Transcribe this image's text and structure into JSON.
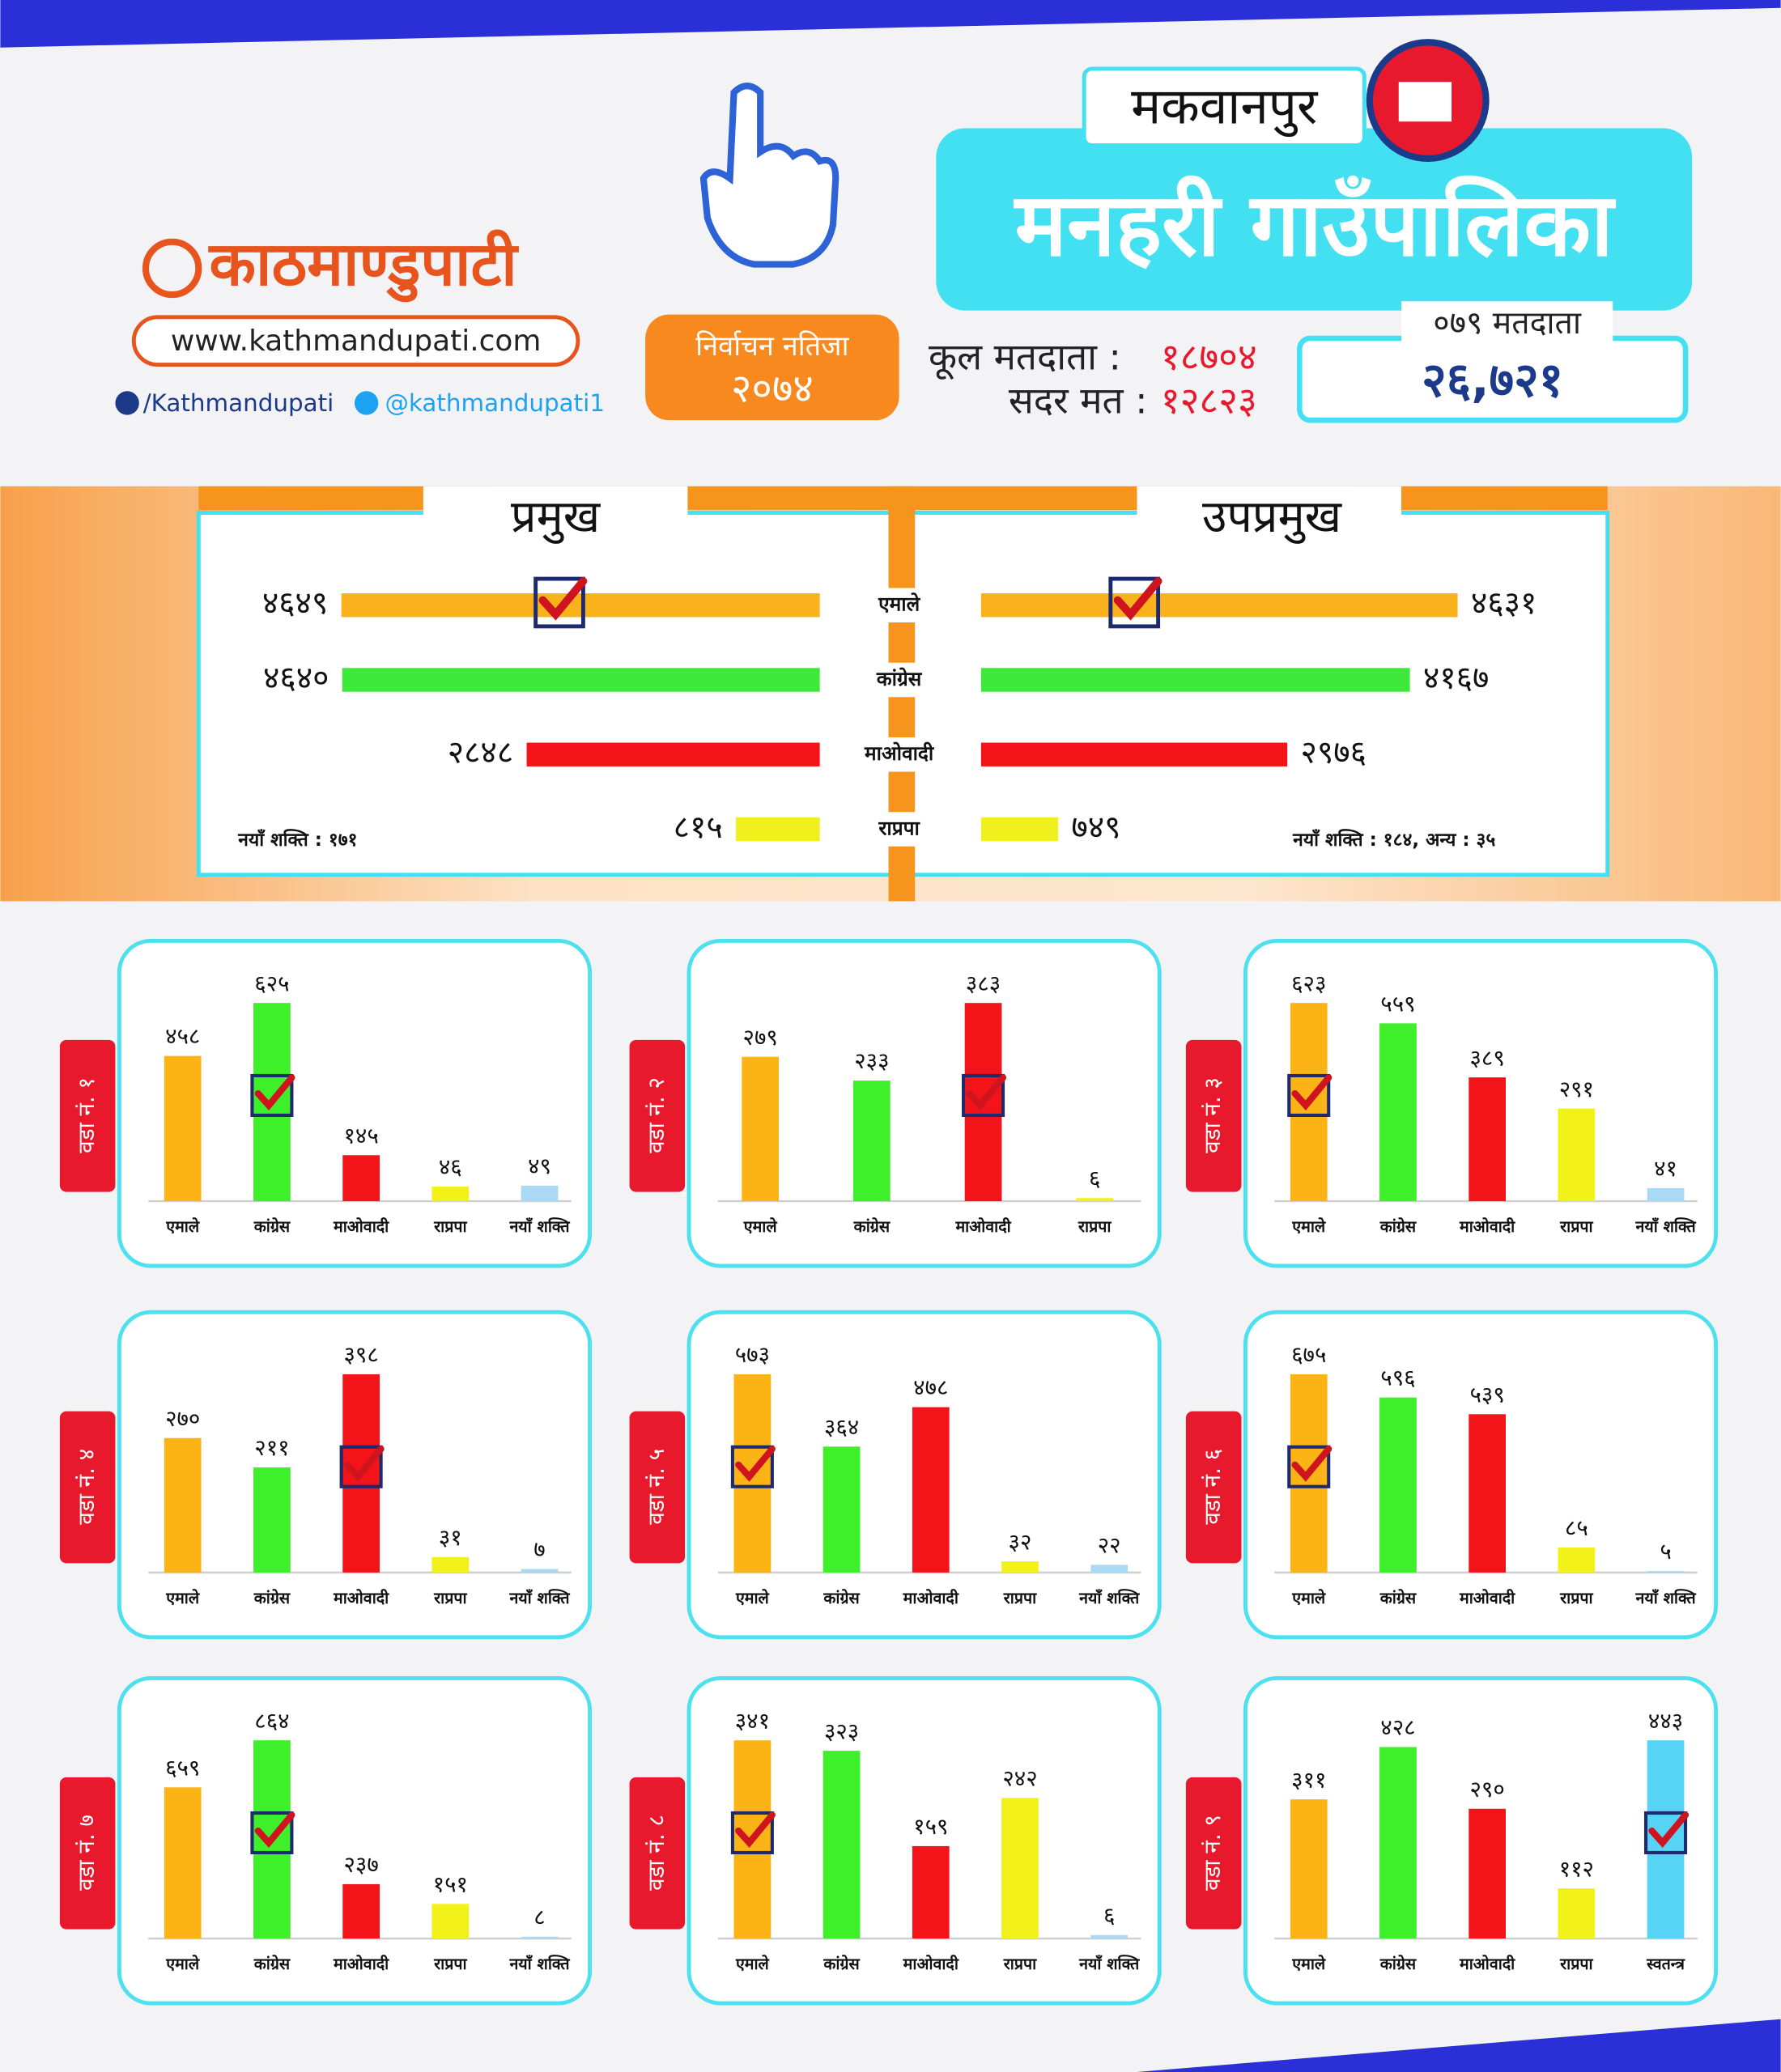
{
  "header": {
    "logo": "काठमाण्डुपाटी",
    "website": "www.kathmandupati.com",
    "facebook": "/Kathmandupati",
    "twitter": "@kathmandupati1",
    "badge_title": "निर्वाचन नतिजा",
    "badge_year": "२०७४",
    "district": "मकवानपुर",
    "municipality": "मनहरी गाउँपालिका",
    "total_voters_label": "कूल मतदाता :",
    "total_voters": "१८७०४",
    "valid_votes_label": "सदर मत :",
    "valid_votes": "१२८२३",
    "voters_079_label": "०७९ मतदाता",
    "voters_079": "२६,७२१"
  },
  "chart_data": [
    {
      "type": "mirror-bar",
      "categories": [
        "एमाले",
        "कांग्रेस",
        "माओवादी",
        "राप्रपा"
      ],
      "colors": [
        "#f9b21b",
        "#3ee83a",
        "#f3141a",
        "#f0f01e"
      ],
      "series": [
        {
          "name": "प्रमुख",
          "values": [
            4649,
            4640,
            2848,
            815
          ],
          "value_labels": [
            "४६४९",
            "४६४०",
            "२८४८",
            "८१५"
          ],
          "note": "नयाँ शक्ति : १७१",
          "checked": 0
        },
        {
          "name": "उपप्रमुख",
          "values": [
            4631,
            4167,
            2976,
            749
          ],
          "value_labels": [
            "४६३१",
            "४१६७",
            "२९७६",
            "७४९"
          ],
          "note": "नयाँ शक्ति : १८४, अन्य : ३५",
          "checked": 0
        }
      ]
    },
    {
      "type": "bar",
      "title": "वडा नं. १",
      "categories": [
        "एमाले",
        "कांग्रेस",
        "माओवादी",
        "राप्रपा",
        "नयाँ शक्ति"
      ],
      "values": [
        458,
        625,
        145,
        46,
        49
      ],
      "value_labels": [
        "४५८",
        "६२५",
        "१४५",
        "४६",
        "४९"
      ],
      "colors": [
        "#fbb316",
        "#3df02a",
        "#f3141a",
        "#f2f21a",
        "#a9d9f5"
      ],
      "checked": 1
    },
    {
      "type": "bar",
      "title": "वडा नं. २",
      "categories": [
        "एमाले",
        "कांग्रेस",
        "माओवादी",
        "राप्रपा"
      ],
      "values": [
        279,
        233,
        383,
        6
      ],
      "value_labels": [
        "२७९",
        "२३३",
        "३८३",
        "६"
      ],
      "colors": [
        "#fbb316",
        "#3df02a",
        "#f3141a",
        "#f2f21a"
      ],
      "checked": 2
    },
    {
      "type": "bar",
      "title": "वडा नं. ३",
      "categories": [
        "एमाले",
        "कांग्रेस",
        "माओवादी",
        "राप्रपा",
        "नयाँ शक्ति"
      ],
      "values": [
        623,
        559,
        389,
        291,
        41
      ],
      "value_labels": [
        "६२३",
        "५५९",
        "३८९",
        "२९१",
        "४१"
      ],
      "colors": [
        "#fbb316",
        "#3df02a",
        "#f3141a",
        "#f2f21a",
        "#a9d9f5"
      ],
      "checked": 0
    },
    {
      "type": "bar",
      "title": "वडा नं. ४",
      "categories": [
        "एमाले",
        "कांग्रेस",
        "माओवादी",
        "राप्रपा",
        "नयाँ शक्ति"
      ],
      "values": [
        270,
        211,
        398,
        31,
        7
      ],
      "value_labels": [
        "२७०",
        "२११",
        "३९८",
        "३१",
        "७"
      ],
      "colors": [
        "#fbb316",
        "#3df02a",
        "#f3141a",
        "#f2f21a",
        "#a9d9f5"
      ],
      "checked": 2
    },
    {
      "type": "bar",
      "title": "वडा नं. ५",
      "categories": [
        "एमाले",
        "कांग्रेस",
        "माओवादी",
        "राप्रपा",
        "नयाँ शक्ति"
      ],
      "values": [
        573,
        364,
        478,
        32,
        22
      ],
      "value_labels": [
        "५७३",
        "३६४",
        "४७८",
        "३२",
        "२२"
      ],
      "colors": [
        "#fbb316",
        "#3df02a",
        "#f3141a",
        "#f2f21a",
        "#a9d9f5"
      ],
      "checked": 0
    },
    {
      "type": "bar",
      "title": "वडा नं. ६",
      "categories": [
        "एमाले",
        "कांग्रेस",
        "माओवादी",
        "राप्रपा",
        "नयाँ शक्ति"
      ],
      "values": [
        675,
        596,
        539,
        85,
        5
      ],
      "value_labels": [
        "६७५",
        "५९६",
        "५३९",
        "८५",
        "५"
      ],
      "colors": [
        "#fbb316",
        "#3df02a",
        "#f3141a",
        "#f2f21a",
        "#a9d9f5"
      ],
      "checked": 0
    },
    {
      "type": "bar",
      "title": "वडा नं. ७",
      "categories": [
        "एमाले",
        "कांग्रेस",
        "माओवादी",
        "राप्रपा",
        "नयाँ शक्ति"
      ],
      "values": [
        659,
        864,
        237,
        151,
        8
      ],
      "value_labels": [
        "६५९",
        "८६४",
        "२३७",
        "१५१",
        "८"
      ],
      "colors": [
        "#fbb316",
        "#3df02a",
        "#f3141a",
        "#f2f21a",
        "#a9d9f5"
      ],
      "checked": 1
    },
    {
      "type": "bar",
      "title": "वडा नं. ८",
      "categories": [
        "एमाले",
        "कांग्रेस",
        "माओवादी",
        "राप्रपा",
        "नयाँ शक्ति"
      ],
      "values": [
        341,
        323,
        159,
        242,
        6
      ],
      "value_labels": [
        "३४१",
        "३२३",
        "१५९",
        "२४२",
        "६"
      ],
      "colors": [
        "#fbb316",
        "#3df02a",
        "#f3141a",
        "#f2f21a",
        "#a9d9f5"
      ],
      "checked": 0
    },
    {
      "type": "bar",
      "title": "वडा नं. ९",
      "categories": [
        "एमाले",
        "कांग्रेस",
        "माओवादी",
        "राप्रपा",
        "स्वतन्त्र"
      ],
      "values": [
        311,
        428,
        290,
        112,
        443
      ],
      "value_labels": [
        "३११",
        "४२८",
        "२९०",
        "११२",
        "४४३"
      ],
      "colors": [
        "#fbb316",
        "#3df02a",
        "#f3141a",
        "#f2f21a",
        "#57d3f5"
      ],
      "checked": 4
    }
  ]
}
